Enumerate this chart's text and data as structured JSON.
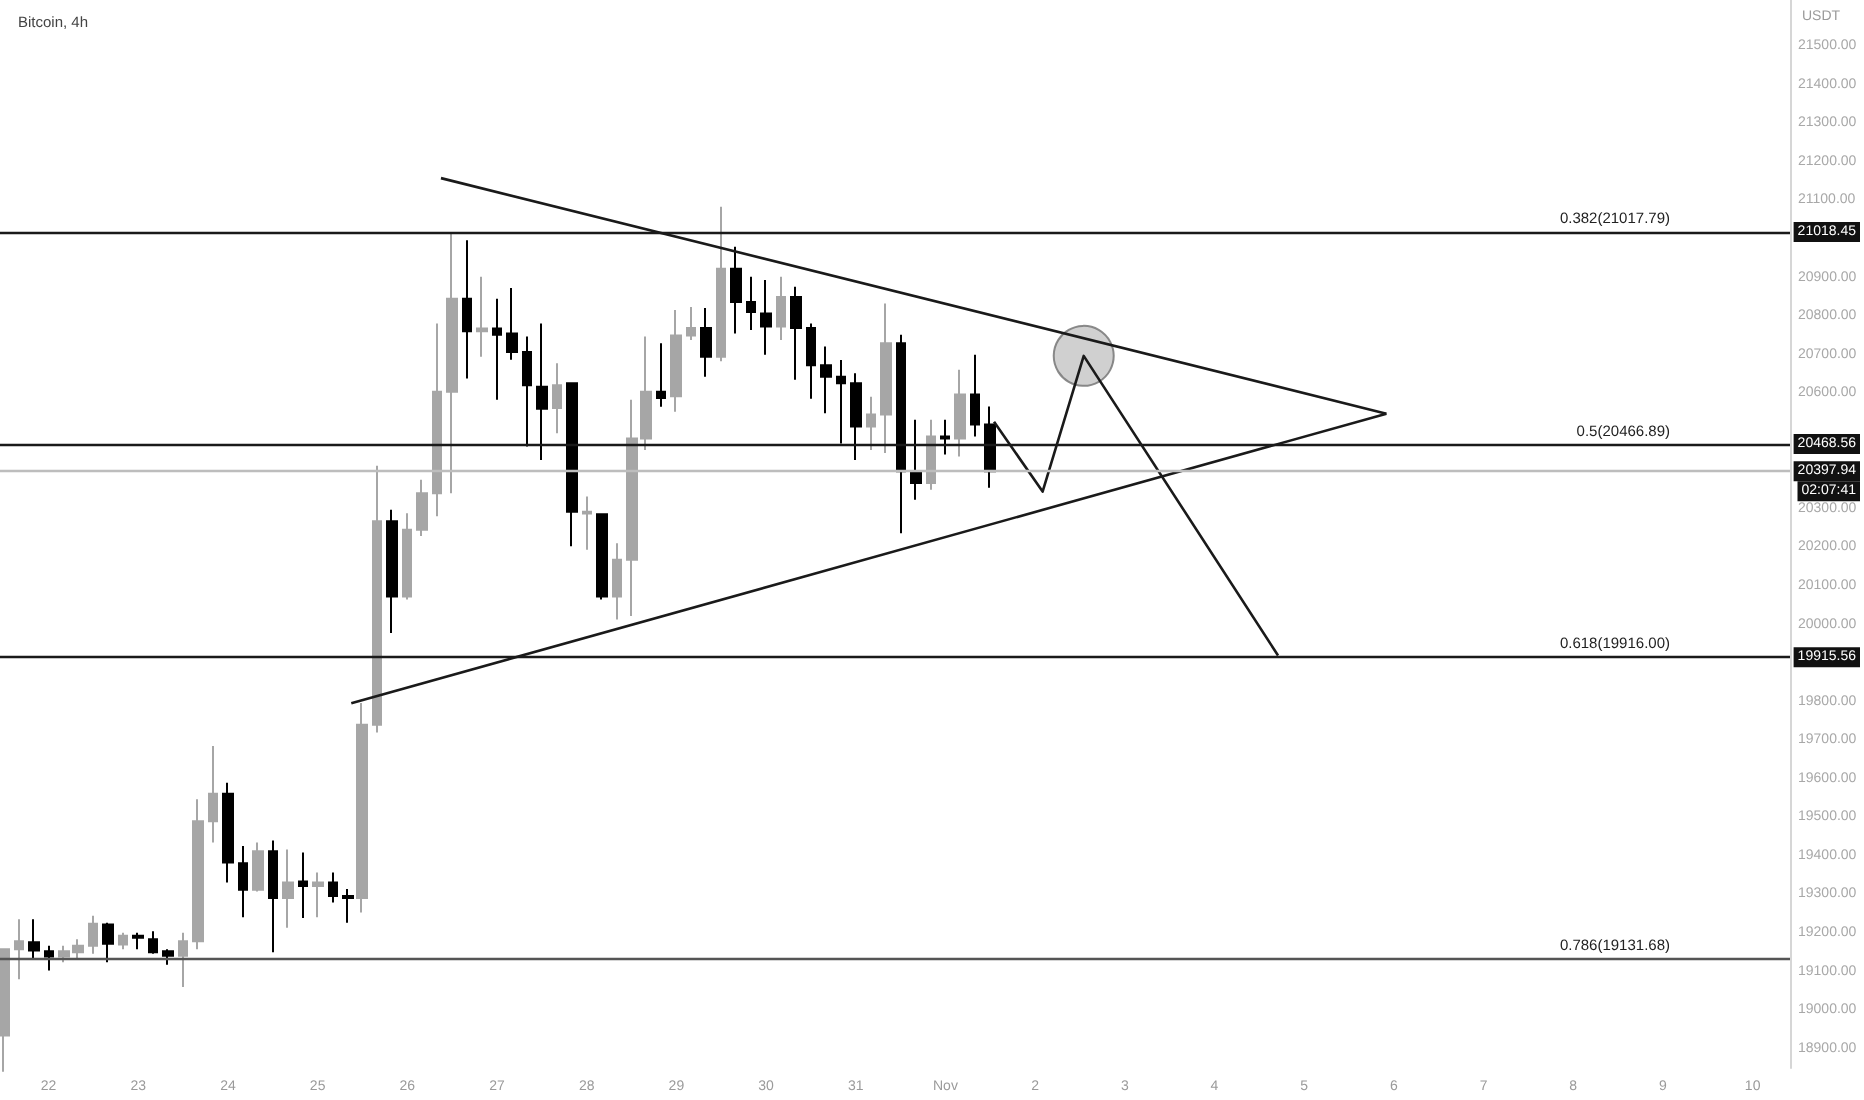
{
  "chart_data": {
    "type": "candlestick",
    "title": "Bitcoin, 4h",
    "ylabel": "USDT",
    "xlim": [
      "--10-21T11:00",
      "--11-10T10:00"
    ],
    "xticks": [
      {
        "value": "--10-22",
        "label": "22"
      },
      {
        "value": "--10-23",
        "label": "23"
      },
      {
        "value": "--10-24",
        "label": "24"
      },
      {
        "value": "--10-25",
        "label": "25"
      },
      {
        "value": "--10-26",
        "label": "26"
      },
      {
        "value": "--10-27",
        "label": "27"
      },
      {
        "value": "--10-28",
        "label": "28"
      },
      {
        "value": "--10-29",
        "label": "29"
      },
      {
        "value": "--10-30",
        "label": "30"
      },
      {
        "value": "--10-31",
        "label": "31"
      },
      {
        "value": "--11-01",
        "label": "Nov"
      },
      {
        "value": "--11-02",
        "label": "2"
      },
      {
        "value": "--11-03",
        "label": "3"
      },
      {
        "value": "--11-04",
        "label": "4"
      },
      {
        "value": "--11-05",
        "label": "5"
      },
      {
        "value": "--11-06",
        "label": "6"
      },
      {
        "value": "--11-07",
        "label": "7"
      },
      {
        "value": "--11-08",
        "label": "8"
      },
      {
        "value": "--11-09",
        "label": "9"
      },
      {
        "value": "--11-10",
        "label": "10"
      }
    ],
    "ylim": [
      18850,
      21620
    ],
    "yticks": [
      {
        "value": 18900,
        "label": "18900.00"
      },
      {
        "value": 19000,
        "label": "19000.00"
      },
      {
        "value": 19100,
        "label": "19100.00"
      },
      {
        "value": 19200,
        "label": "19200.00"
      },
      {
        "value": 19300,
        "label": "19300.00"
      },
      {
        "value": 19400,
        "label": "19400.00"
      },
      {
        "value": 19500,
        "label": "19500.00"
      },
      {
        "value": 19600,
        "label": "19600.00"
      },
      {
        "value": 19700,
        "label": "19700.00"
      },
      {
        "value": 19800,
        "label": "19800.00"
      },
      {
        "value": 20000,
        "label": "20000.00"
      },
      {
        "value": 20100,
        "label": "20100.00"
      },
      {
        "value": 20200,
        "label": "20200.00"
      },
      {
        "value": 20300,
        "label": "20300.00"
      },
      {
        "value": 20600,
        "label": "20600.00"
      },
      {
        "value": 20700,
        "label": "20700.00"
      },
      {
        "value": 20800,
        "label": "20800.00"
      },
      {
        "value": 20900,
        "label": "20900.00"
      },
      {
        "value": 21100,
        "label": "21100.00"
      },
      {
        "value": 21200,
        "label": "21200.00"
      },
      {
        "value": 21300,
        "label": "21300.00"
      },
      {
        "value": 21400,
        "label": "21400.00"
      },
      {
        "value": 21500,
        "label": "21500.00"
      }
    ],
    "grid": false,
    "marker": "none",
    "series": [
      {
        "x": [
          "--10-21T12:00",
          "--10-21T16:00",
          "--10-21T20:00",
          "--10-22T00:00",
          "--10-22T04:00",
          "--10-22T08:00",
          "--10-22T12:00",
          "--10-22T16:00",
          "--10-22T20:00",
          "--10-23T00:00",
          "--10-23T04:00",
          "--10-23T08:00",
          "--10-23T12:00",
          "--10-23T16:00",
          "--10-23T20:00",
          "--10-24T00:00",
          "--10-24T04:00",
          "--10-24T08:00",
          "--10-24T12:00",
          "--10-24T16:00",
          "--10-24T20:00",
          "--10-25T00:00",
          "--10-25T04:00",
          "--10-25T08:00",
          "--10-25T12:00",
          "--10-25T16:00",
          "--10-25T20:00",
          "--10-26T00:00",
          "--10-26T04:00",
          "--10-26T08:00",
          "--10-26T12:00",
          "--10-26T16:00",
          "--10-26T20:00",
          "--10-27T00:00",
          "--10-27T04:00",
          "--10-27T08:00",
          "--10-27T12:00",
          "--10-27T16:00",
          "--10-27T20:00",
          "--10-28T00:00",
          "--10-28T04:00",
          "--10-28T08:00",
          "--10-28T12:00",
          "--10-28T16:00",
          "--10-28T20:00",
          "--10-29T00:00",
          "--10-29T04:00",
          "--10-29T08:00",
          "--10-29T12:00",
          "--10-29T16:00",
          "--10-29T20:00",
          "--10-30T00:00",
          "--10-30T04:00",
          "--10-30T08:00",
          "--10-30T12:00",
          "--10-30T16:00",
          "--10-30T20:00",
          "--10-31T00:00",
          "--10-31T04:00",
          "--10-31T08:00",
          "--10-31T12:00",
          "--10-31T16:00",
          "--10-31T20:00",
          "--11-01T00:00",
          "--11-01T04:00",
          "--11-01T08:00",
          "--11-01T12:00"
        ],
        "ohlc": [
          [
            18934,
            19158,
            18840,
            19158
          ],
          [
            19158,
            19236,
            19080,
            19179
          ],
          [
            19176,
            19236,
            19132,
            19155
          ],
          [
            19153,
            19167,
            19103,
            19139
          ],
          [
            19139,
            19167,
            19124,
            19153
          ],
          [
            19150,
            19184,
            19132,
            19167
          ],
          [
            19167,
            19245,
            19146,
            19224
          ],
          [
            19222,
            19227,
            19124,
            19172
          ],
          [
            19170,
            19201,
            19158,
            19193
          ],
          [
            19193,
            19201,
            19158,
            19188
          ],
          [
            19184,
            19205,
            19146,
            19150
          ],
          [
            19153,
            19158,
            19118,
            19141
          ],
          [
            19141,
            19201,
            19060,
            19179
          ],
          [
            19179,
            19547,
            19158,
            19490
          ],
          [
            19490,
            19685,
            19435,
            19561
          ],
          [
            19561,
            19590,
            19331,
            19383
          ],
          [
            19381,
            19426,
            19241,
            19312
          ],
          [
            19312,
            19435,
            19308,
            19412
          ],
          [
            19412,
            19440,
            19150,
            19291
          ],
          [
            19291,
            19417,
            19214,
            19331
          ],
          [
            19334,
            19409,
            19239,
            19322
          ],
          [
            19322,
            19357,
            19241,
            19331
          ],
          [
            19331,
            19357,
            19279,
            19296
          ],
          [
            19296,
            19314,
            19227,
            19291
          ],
          [
            19291,
            19797,
            19253,
            19740
          ],
          [
            19740,
            20412,
            19720,
            20268
          ],
          [
            20268,
            20298,
            19978,
            20073
          ],
          [
            20073,
            20289,
            20065,
            20246
          ],
          [
            20246,
            20376,
            20230,
            20341
          ],
          [
            20341,
            20781,
            20281,
            20604
          ],
          [
            20604,
            21015,
            20341,
            20845
          ],
          [
            20845,
            20997,
            20638,
            20761
          ],
          [
            20761,
            20902,
            20695,
            20768
          ],
          [
            20768,
            20845,
            20583,
            20752
          ],
          [
            20755,
            20873,
            20687,
            20707
          ],
          [
            20707,
            20747,
            20462,
            20621
          ],
          [
            20617,
            20781,
            20427,
            20560
          ],
          [
            20562,
            20678,
            20496,
            20621
          ],
          [
            20626,
            20626,
            20203,
            20293
          ],
          [
            20288,
            20332,
            20194,
            20293
          ],
          [
            20286,
            20289,
            20065,
            20073
          ],
          [
            20073,
            20211,
            20013,
            20168
          ],
          [
            20168,
            20583,
            20022,
            20483
          ],
          [
            20483,
            20747,
            20453,
            20604
          ],
          [
            20604,
            20730,
            20565,
            20588
          ],
          [
            20592,
            20816,
            20552,
            20750
          ],
          [
            20750,
            20824,
            20738,
            20769
          ],
          [
            20769,
            20821,
            20643,
            20695
          ],
          [
            20695,
            21084,
            20683,
            20923
          ],
          [
            20923,
            20980,
            20755,
            20837
          ],
          [
            20837,
            20902,
            20764,
            20811
          ],
          [
            20807,
            20894,
            20700,
            20773
          ],
          [
            20773,
            20902,
            20738,
            20850
          ],
          [
            20850,
            20876,
            20635,
            20769
          ],
          [
            20769,
            20781,
            20586,
            20673
          ],
          [
            20673,
            20721,
            20548,
            20643
          ],
          [
            20643,
            20686,
            20470,
            20626
          ],
          [
            20626,
            20652,
            20427,
            20514
          ],
          [
            20514,
            20591,
            20453,
            20545
          ],
          [
            20545,
            20833,
            20445,
            20730
          ],
          [
            20730,
            20752,
            20237,
            20398
          ],
          [
            20398,
            20531,
            20324,
            20367
          ],
          [
            20367,
            20531,
            20350,
            20488
          ],
          [
            20488,
            20531,
            20441,
            20483
          ],
          [
            20483,
            20661,
            20436,
            20597
          ],
          [
            20597,
            20700,
            20488,
            20519
          ],
          [
            20519,
            20566,
            20355,
            20398
          ]
        ],
        "colors": [
          "#a6a6a6",
          "#a6a6a6",
          "#000000",
          "#000000",
          "#a6a6a6",
          "#a6a6a6",
          "#a6a6a6",
          "#000000",
          "#a6a6a6",
          "#000000",
          "#000000",
          "#000000",
          "#a6a6a6",
          "#a6a6a6",
          "#a6a6a6",
          "#000000",
          "#000000",
          "#a6a6a6",
          "#000000",
          "#a6a6a6",
          "#000000",
          "#a6a6a6",
          "#000000",
          "#000000",
          "#a6a6a6",
          "#a6a6a6",
          "#000000",
          "#a6a6a6",
          "#a6a6a6",
          "#a6a6a6",
          "#a6a6a6",
          "#000000",
          "#a6a6a6",
          "#000000",
          "#000000",
          "#000000",
          "#000000",
          "#a6a6a6",
          "#000000",
          "#a6a6a6",
          "#000000",
          "#a6a6a6",
          "#a6a6a6",
          "#a6a6a6",
          "#000000",
          "#a6a6a6",
          "#a6a6a6",
          "#000000",
          "#a6a6a6",
          "#000000",
          "#000000",
          "#000000",
          "#a6a6a6",
          "#000000",
          "#000000",
          "#000000",
          "#000000",
          "#000000",
          "#a6a6a6",
          "#a6a6a6",
          "#000000",
          "#000000",
          "#a6a6a6",
          "#000000",
          "#a6a6a6",
          "#000000",
          "#000000"
        ]
      },
      {
        "type": "line",
        "color": "#1a1a1a",
        "x": [
          "--10-26T09:00",
          "--11-05T22:00"
        ],
        "values": [
          21158,
          20547
        ]
      },
      {
        "type": "line",
        "color": "#1a1a1a",
        "x": [
          "--10-25T09:00",
          "--11-05T22:00"
        ],
        "values": [
          19796,
          20547
        ]
      },
      {
        "type": "line",
        "color": "#1a1a1a",
        "x": [
          "--11-01T13:00",
          "--11-02T02:00",
          "--11-02T13:00",
          "--11-04T17:00"
        ],
        "values": [
          20526,
          20345,
          20697,
          19920
        ]
      },
      {
        "type": "scatter",
        "marker": "circle",
        "color": "#c8c8c8",
        "x": [
          "--11-02T13:00"
        ],
        "values": [
          20697
        ]
      }
    ],
    "ref_lines": [
      {
        "axis": "y",
        "value": 21017.79,
        "label": "0.382(21017.79)",
        "color": "#1a1a1a"
      },
      {
        "axis": "y",
        "value": 20466.89,
        "label": "0.5(20466.89)",
        "color": "#1a1a1a"
      },
      {
        "axis": "y",
        "value": 20397.94,
        "label": null,
        "color": "#bdbdbd"
      },
      {
        "axis": "y",
        "value": 19916.0,
        "label": "0.618(19916.00)",
        "color": "#1a1a1a"
      },
      {
        "axis": "y",
        "value": 19131.68,
        "label": "0.786(19131.68)",
        "color": "#555555"
      }
    ],
    "annotations": [
      {
        "text": "21018.45",
        "y": 21018.45
      },
      {
        "text": "20468.56",
        "y": 20468.56
      },
      {
        "text": "20397.94",
        "y": 20397.94
      },
      "02:07:41",
      {
        "text": "19915.56",
        "y": 19915.56
      }
    ]
  }
}
